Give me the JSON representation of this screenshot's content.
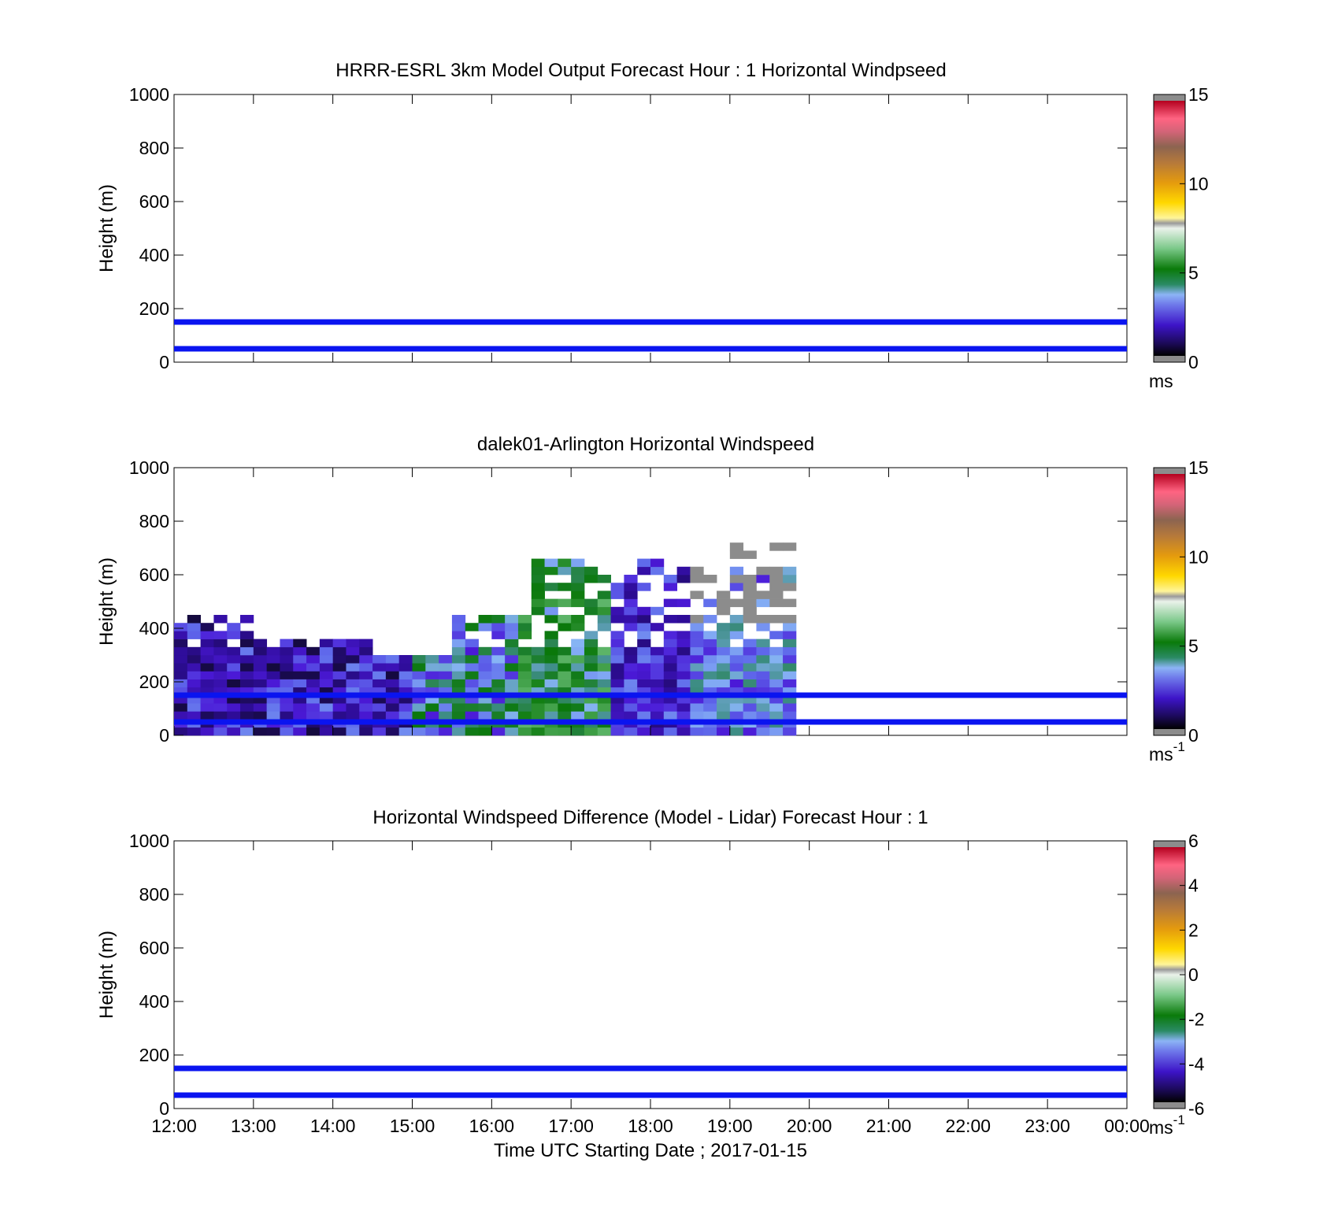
{
  "colors": {
    "threshold_line": "#0a14f0",
    "plot_border": "#000000",
    "background": "#ffffff",
    "colorbar_out_of_range": "#8c8c8c"
  },
  "chart_data": [
    {
      "id": "model",
      "type": "heatmap",
      "title": "HRRR-ESRL 3km Model Output   Forecast Hour : 1 Horizontal Windpseed",
      "ylabel": "Height (m)",
      "xlabel": "",
      "ylim": [
        0,
        1000
      ],
      "xlim": [
        "12:00",
        "00:00"
      ],
      "yticks": [
        "0",
        "200",
        "400",
        "600",
        "800",
        "1000"
      ],
      "reference_lines_m": [
        50,
        150
      ],
      "colorbar": {
        "ticks": [
          "0",
          "5",
          "10",
          "15"
        ],
        "range": [
          0,
          15
        ],
        "unit_base": "ms",
        "unit_exp": ""
      },
      "cells": []
    },
    {
      "id": "lidar",
      "type": "heatmap",
      "title": "dalek01-Arlington  Horizontal Windspeed",
      "ylabel": "Height (m)",
      "xlabel": "",
      "ylim": [
        0,
        1000
      ],
      "xlim": [
        "12:00",
        "00:00"
      ],
      "yticks": [
        "0",
        "200",
        "400",
        "600",
        "800",
        "1000"
      ],
      "reference_lines_m": [
        50,
        150
      ],
      "colorbar": {
        "ticks": [
          "0",
          "5",
          "10",
          "15"
        ],
        "range": [
          0,
          15
        ],
        "unit_base": "ms",
        "unit_exp": "-1"
      },
      "data_extent": {
        "time_start": "12:00",
        "time_end": "19:50",
        "max_height_m": 720
      },
      "column_tops_m": [
        {
          "start": "12:00",
          "end": "12:20",
          "top_m": 440
        },
        {
          "start": "12:20",
          "end": "13:00",
          "top_m": 440
        },
        {
          "start": "13:00",
          "end": "13:50",
          "top_m": 360
        },
        {
          "start": "13:50",
          "end": "14:30",
          "top_m": 360
        },
        {
          "start": "14:30",
          "end": "15:30",
          "top_m": 290
        },
        {
          "start": "15:30",
          "end": "15:50",
          "top_m": 440
        },
        {
          "start": "15:50",
          "end": "16:30",
          "top_m": 440
        },
        {
          "start": "16:30",
          "end": "17:20",
          "top_m": 650
        },
        {
          "start": "17:20",
          "end": "17:50",
          "top_m": 580
        },
        {
          "start": "17:50",
          "end": "18:40",
          "top_m": 650
        },
        {
          "start": "18:40",
          "end": "19:00",
          "top_m": 650
        },
        {
          "start": "19:00",
          "end": "19:50",
          "top_m": 720
        }
      ],
      "regimes": [
        {
          "start": "12:00",
          "end": "15:00",
          "description_level": "low speed 0-3 m/s"
        },
        {
          "start": "15:00",
          "end": "16:20",
          "description_level": "2-5 m/s"
        },
        {
          "start": "16:20",
          "end": "17:30",
          "description_level": "3-6 m/s"
        },
        {
          "start": "17:30",
          "end": "18:30",
          "description_level": "1-3 m/s"
        },
        {
          "start": "18:30",
          "end": "19:50",
          "description_level": "2-4 m/s, >15 m/s above 400 m"
        }
      ]
    },
    {
      "id": "difference",
      "type": "heatmap",
      "title": "Horizontal Windspeed Difference (Model - Lidar) Forecast Hour : 1",
      "ylabel": "Height (m)",
      "xlabel": "Time UTC  Starting Date ; 2017-01-15",
      "ylim": [
        0,
        1000
      ],
      "xlim": [
        "12:00",
        "00:00"
      ],
      "xticks": [
        "12:00",
        "13:00",
        "14:00",
        "15:00",
        "16:00",
        "17:00",
        "18:00",
        "19:00",
        "20:00",
        "21:00",
        "22:00",
        "23:00",
        "00:00"
      ],
      "yticks": [
        "0",
        "200",
        "400",
        "600",
        "800",
        "1000"
      ],
      "reference_lines_m": [
        50,
        150
      ],
      "colorbar": {
        "ticks": [
          "-6",
          "-4",
          "-2",
          "0",
          "2",
          "4",
          "6"
        ],
        "range": [
          -6,
          6
        ],
        "unit_base": "ms",
        "unit_exp": "-1"
      },
      "cells": []
    }
  ]
}
